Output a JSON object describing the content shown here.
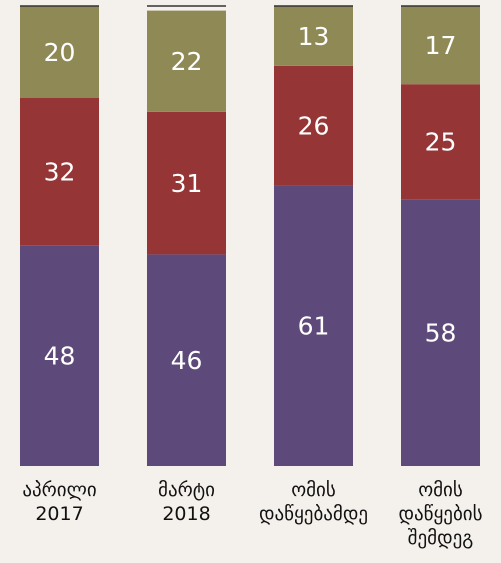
{
  "chart_data": {
    "type": "stacked_bar",
    "categories": [
      "აპრილი\n2017",
      "მარტი\n2018",
      "ომის\nდაწყებამდე",
      "ომის\nდაწყების\nშემდეგ"
    ],
    "series": [
      {
        "color": "#5e4a7a",
        "values": [
          48,
          46,
          61,
          58
        ]
      },
      {
        "color": "#953535",
        "values": [
          32,
          31,
          26,
          25
        ]
      },
      {
        "color": "#8f8a55",
        "values": [
          20,
          22,
          13,
          17
        ]
      }
    ],
    "ylim": [
      0,
      100
    ]
  }
}
